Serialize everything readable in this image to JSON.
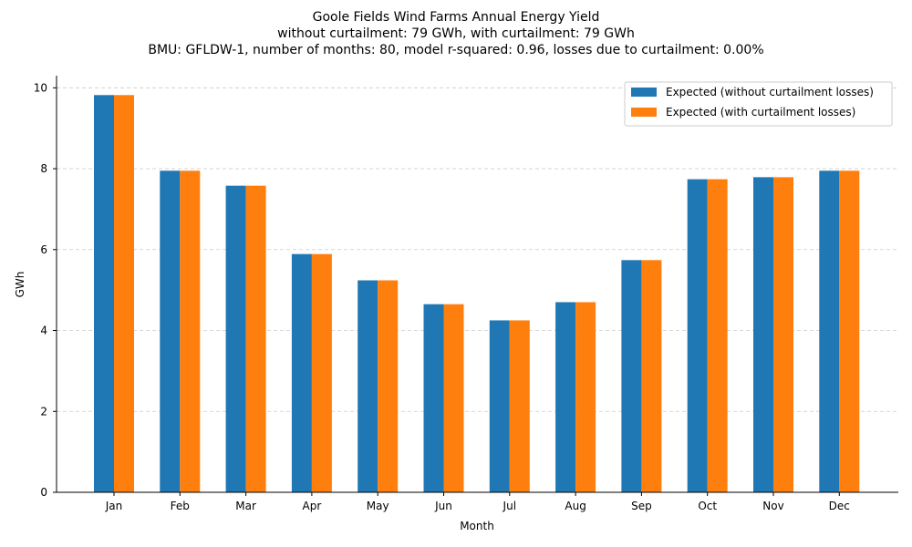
{
  "chart_data": {
    "type": "bar",
    "title": "Goole Fields Wind Farms Annual Energy Yield",
    "subtitle_lines": [
      "without curtailment: 79 GWh, with curtailment: 79 GWh",
      "BMU: GFLDW-1, number of months: 80, model r-squared: 0.96, losses due to curtailment: 0.00%"
    ],
    "xlabel": "Month",
    "ylabel": "GWh",
    "ylim": [
      0,
      10.3
    ],
    "yticks": [
      0,
      2,
      4,
      6,
      8,
      10
    ],
    "grid": "y-dashed",
    "legend_position": "top-right",
    "categories": [
      "Jan",
      "Feb",
      "Mar",
      "Apr",
      "May",
      "Jun",
      "Jul",
      "Aug",
      "Sep",
      "Oct",
      "Nov",
      "Dec"
    ],
    "series": [
      {
        "name": "Expected (without curtailment losses)",
        "color": "#1f77b4",
        "values": [
          9.82,
          7.95,
          7.58,
          5.89,
          5.24,
          4.65,
          4.25,
          4.7,
          5.74,
          7.74,
          7.79,
          7.95
        ]
      },
      {
        "name": "Expected (with curtailment losses)",
        "color": "#ff7f0e",
        "values": [
          9.82,
          7.95,
          7.58,
          5.89,
          5.24,
          4.65,
          4.25,
          4.7,
          5.74,
          7.74,
          7.79,
          7.95
        ]
      }
    ]
  }
}
